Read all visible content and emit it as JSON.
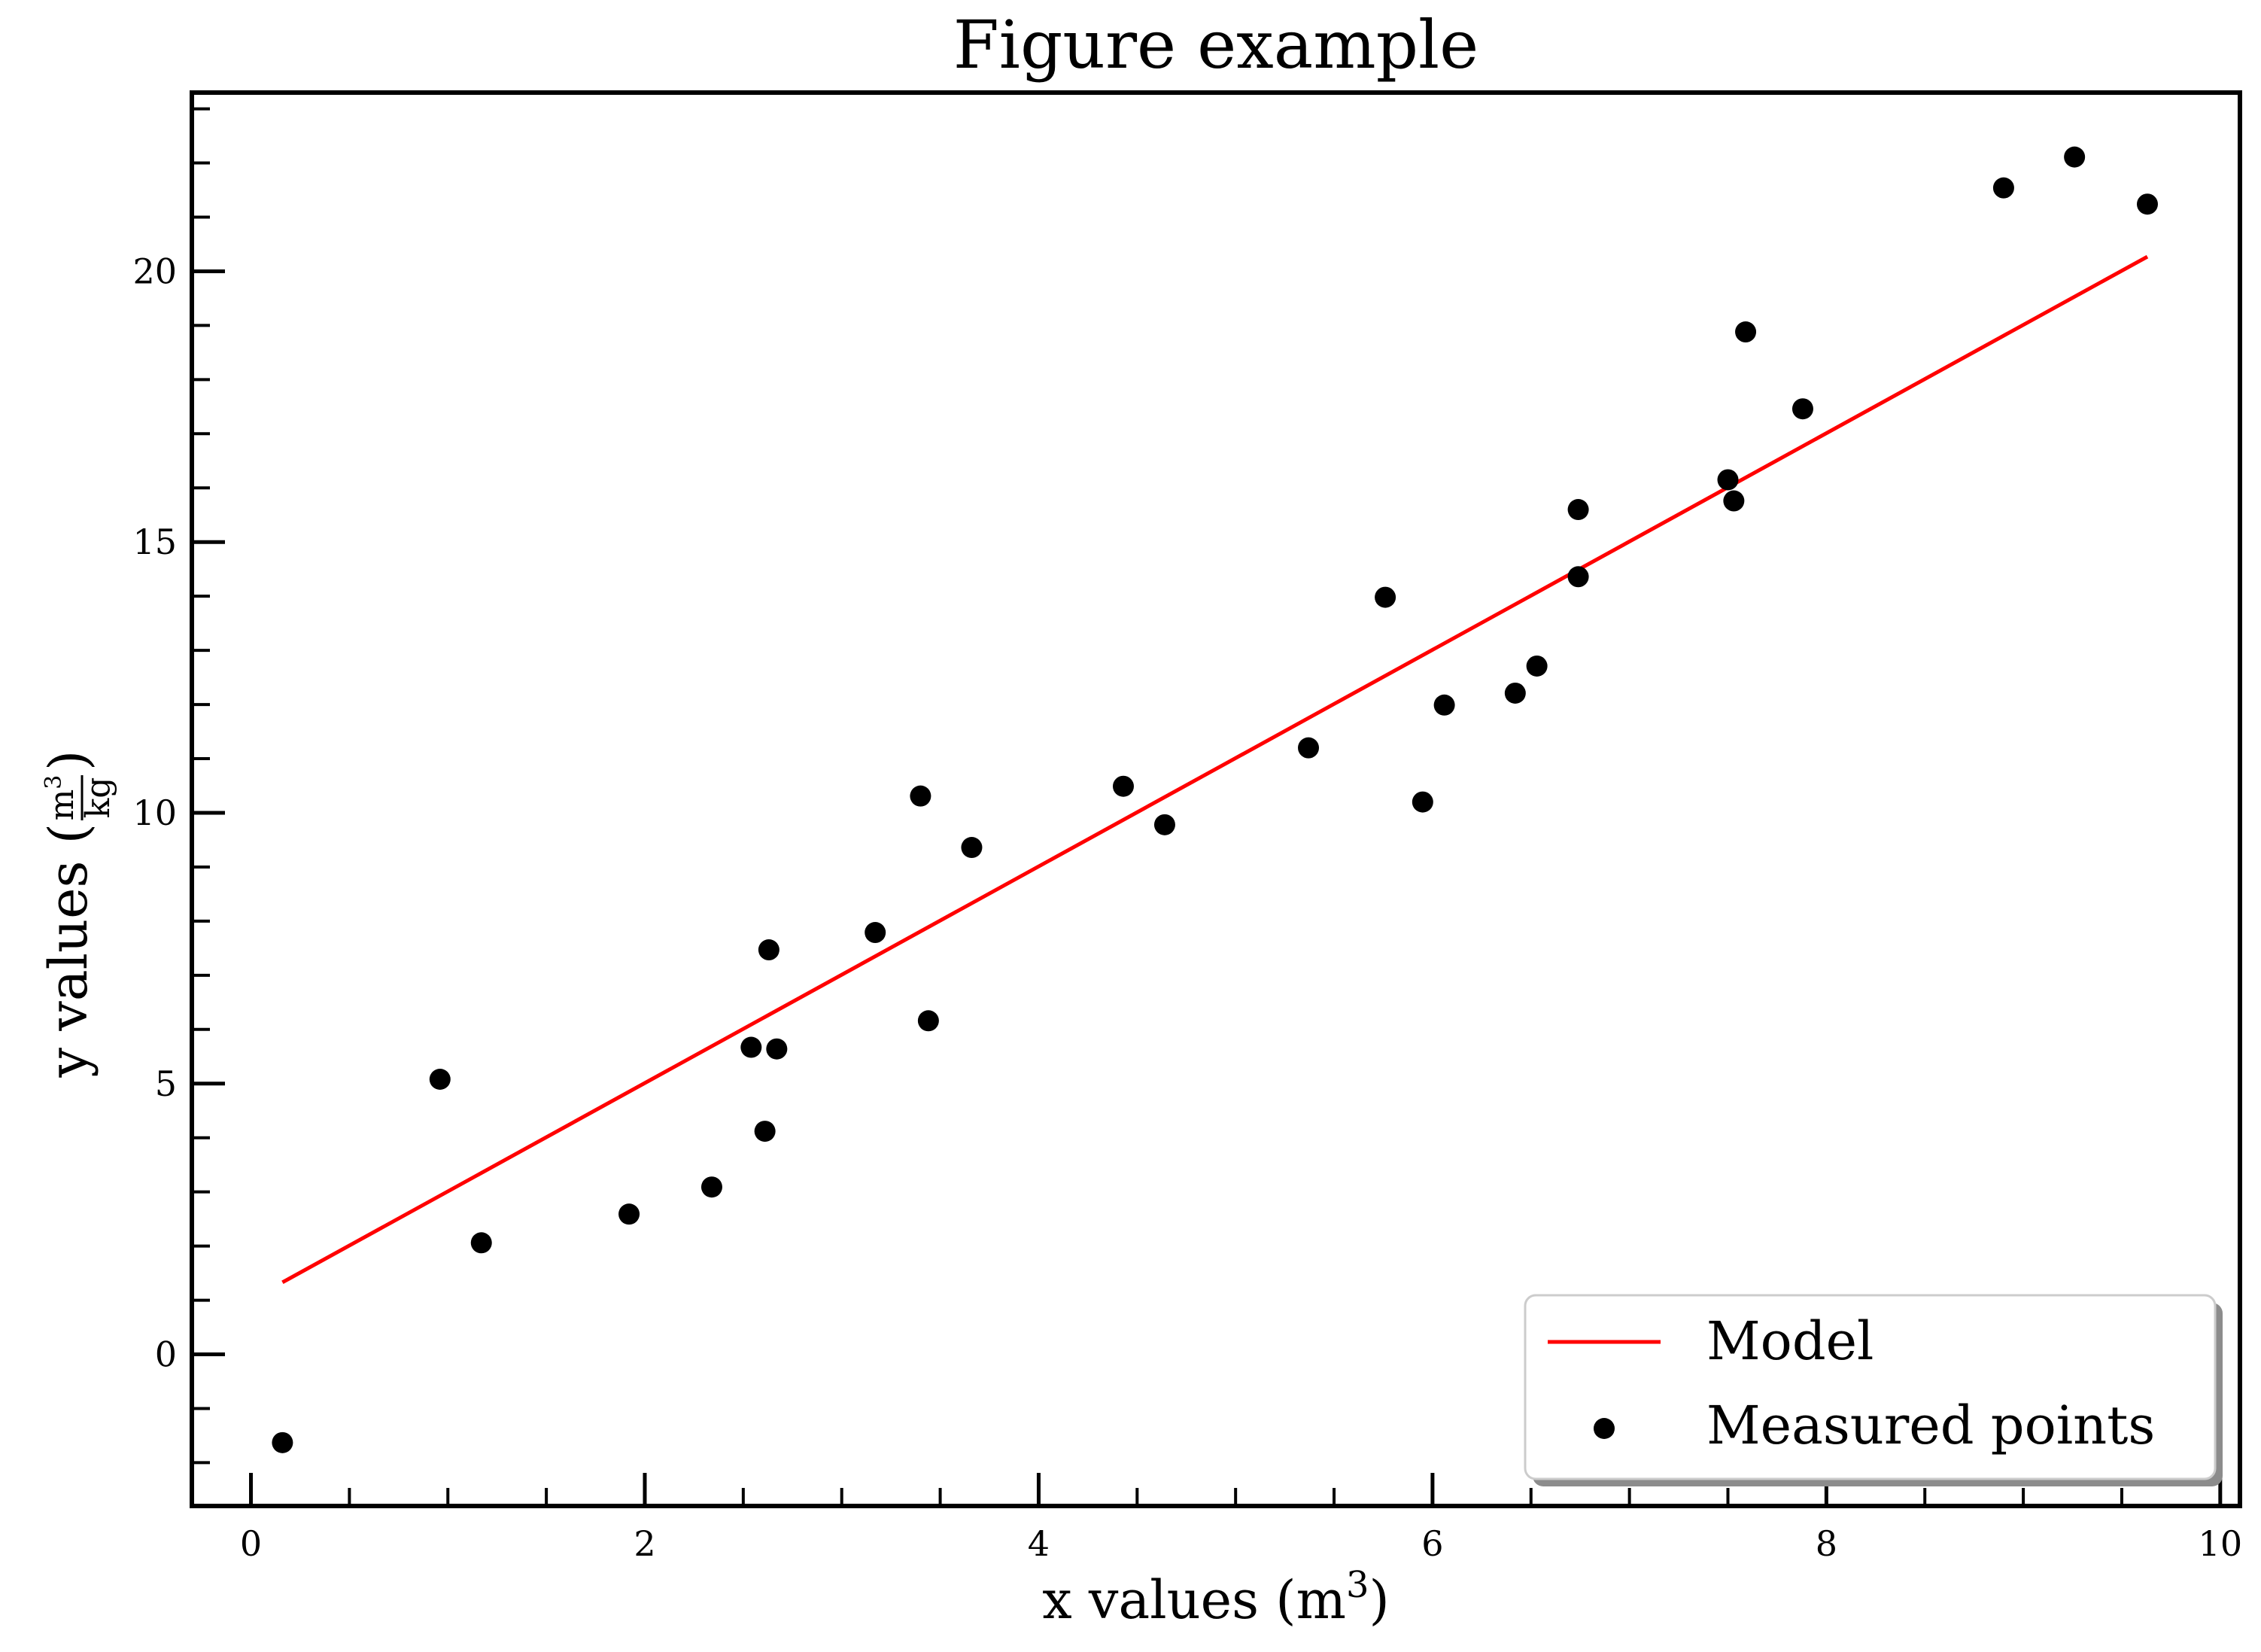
{
  "chart_data": {
    "type": "scatter",
    "title": "Figure example",
    "xlabel": "x values (m",
    "xlabel_sup": "3",
    "xlabel_close": ")",
    "ylabel": "y values (",
    "ylabel_num": "m",
    "ylabel_num_sup": "3",
    "ylabel_den": "kg",
    "ylabel_close": ")",
    "xlim": [
      -0.3,
      10.1
    ],
    "ylim": [
      -2.8,
      23.3
    ],
    "xticks": [
      0,
      2,
      4,
      6,
      8,
      10
    ],
    "xtick_labels": [
      "0",
      "2",
      "4",
      "6",
      "8",
      "10"
    ],
    "xminor": [
      0.5,
      1,
      1.5,
      2.5,
      3,
      3.5,
      4.5,
      5,
      5.5,
      6.5,
      7,
      7.5,
      8.5,
      9,
      9.5
    ],
    "yticks": [
      0,
      5,
      10,
      15,
      20
    ],
    "ytick_labels": [
      "0",
      "5",
      "10",
      "15",
      "20"
    ],
    "yminor": [
      -2,
      -1,
      1,
      2,
      3,
      4,
      6,
      7,
      8,
      9,
      11,
      12,
      13,
      14,
      16,
      17,
      18,
      19,
      21,
      22,
      23
    ],
    "grid": false,
    "legend_position": "lower-right",
    "series": [
      {
        "name": "Model",
        "kind": "line",
        "color": "#ff0000",
        "x": [
          0.16,
          9.63
        ],
        "y": [
          1.33,
          20.27
        ]
      },
      {
        "name": "Measured points",
        "kind": "scatter",
        "color": "#000000",
        "x": [
          0.16,
          0.96,
          1.17,
          1.92,
          2.34,
          2.54,
          2.61,
          2.63,
          2.67,
          3.17,
          3.4,
          3.44,
          3.66,
          4.43,
          4.64,
          5.37,
          5.76,
          5.95,
          6.06,
          6.42,
          6.53,
          6.74,
          6.74,
          7.5,
          7.53,
          7.59,
          7.88,
          8.9,
          9.26,
          9.63
        ],
        "y": [
          -1.63,
          5.08,
          2.06,
          2.59,
          3.09,
          5.67,
          4.12,
          7.47,
          5.64,
          7.79,
          10.31,
          6.16,
          9.36,
          10.49,
          9.78,
          11.2,
          13.98,
          10.2,
          11.99,
          12.21,
          12.71,
          15.6,
          14.36,
          16.15,
          15.76,
          18.88,
          17.46,
          21.54,
          22.11,
          21.24
        ]
      }
    ]
  }
}
